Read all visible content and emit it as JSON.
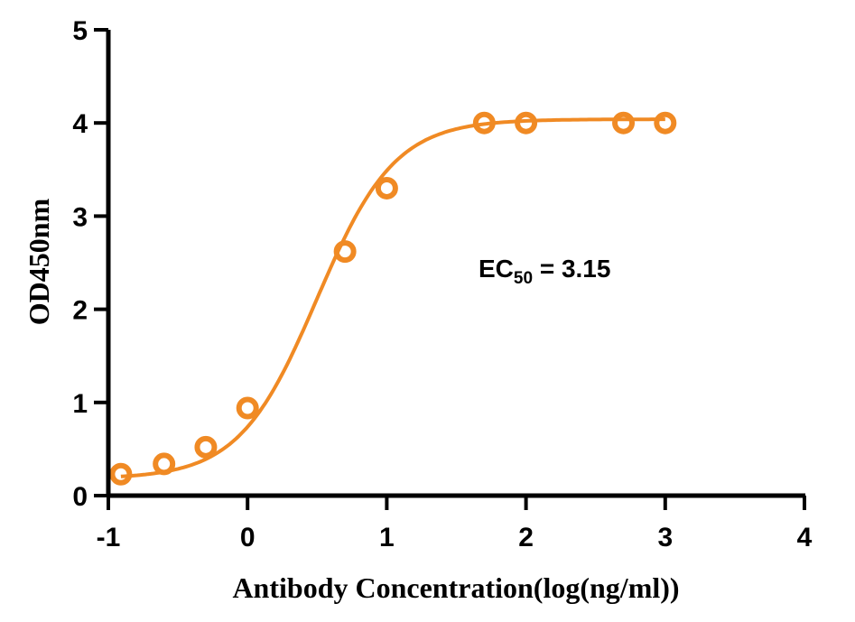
{
  "chart_data": {
    "type": "scatter",
    "title": "",
    "xlabel": "Antibody Concentration(log(ng/ml))",
    "ylabel": "OD450nm",
    "xlim": [
      -1,
      4
    ],
    "ylim": [
      0,
      5
    ],
    "x_ticks": [
      -1,
      0,
      1,
      2,
      3,
      4
    ],
    "y_ticks": [
      0,
      1,
      2,
      3,
      4,
      5
    ],
    "x_tick_labels": [
      "-1",
      "0",
      "1",
      "2",
      "3",
      "4"
    ],
    "y_tick_labels": [
      "0",
      "1",
      "2",
      "3",
      "4",
      "5"
    ],
    "grid": false,
    "legend": null,
    "series": [
      {
        "name": "OD450nm",
        "color": "#F08A24",
        "marker": "open-circle",
        "fit": "sigmoidal 4PL",
        "x": [
          -0.91,
          -0.6,
          -0.3,
          0.0,
          0.7,
          1.0,
          1.7,
          2.0,
          2.7,
          3.0
        ],
        "y": [
          0.23,
          0.34,
          0.52,
          0.94,
          2.62,
          3.3,
          4.0,
          4.0,
          4.0,
          4.0
        ]
      }
    ],
    "fit_params": {
      "bottom": 0.18,
      "top": 4.04,
      "log_ec50": 0.498,
      "hill": 1.55
    },
    "annotations": [
      {
        "text_main": "EC",
        "text_sub": "50",
        "text_tail": " = 3.15",
        "x": 1.7,
        "y": 2.45
      }
    ]
  }
}
